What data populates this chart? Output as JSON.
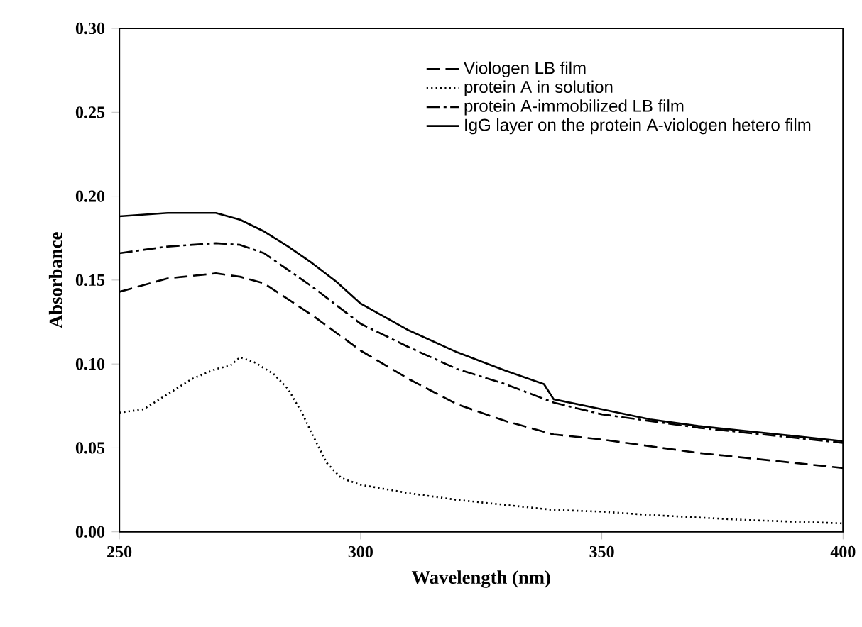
{
  "chart_data": {
    "type": "line",
    "xlabel": "Wavelength (nm)",
    "ylabel": "Absorbance",
    "xlim": [
      250,
      400
    ],
    "ylim": [
      0,
      0.3
    ],
    "xticks": [
      250,
      300,
      350,
      400
    ],
    "yticks": [
      {
        "value": 0,
        "label": "0.00"
      },
      {
        "value": 0.05,
        "label": "0.05"
      },
      {
        "value": 0.1,
        "label": "0.10"
      },
      {
        "value": 0.15,
        "label": "0.15"
      },
      {
        "value": 0.2,
        "label": "0.20"
      },
      {
        "value": 0.25,
        "label": "0.25"
      },
      {
        "value": 0.3,
        "label": "0.30"
      }
    ],
    "legend": "top right",
    "grid": false,
    "marker": "none",
    "series": [
      {
        "name": "Viologen LB film",
        "color": "#000000",
        "line_style": "dashed",
        "x": [
          250,
          260,
          270,
          275,
          280,
          290,
          300,
          310,
          320,
          330,
          340,
          350,
          360,
          370,
          380,
          390,
          400
        ],
        "values": [
          0.143,
          0.151,
          0.154,
          0.152,
          0.148,
          0.129,
          0.108,
          0.091,
          0.076,
          0.066,
          0.058,
          0.055,
          0.051,
          0.047,
          0.044,
          0.041,
          0.038
        ]
      },
      {
        "name": "protein A in solution",
        "color": "#000000",
        "line_style": "dotted",
        "x": [
          250,
          255,
          260,
          265,
          270,
          273,
          275,
          278,
          282,
          285,
          288,
          290,
          293,
          296,
          300,
          310,
          320,
          330,
          340,
          350,
          360,
          380,
          400
        ],
        "values": [
          0.071,
          0.073,
          0.082,
          0.091,
          0.097,
          0.099,
          0.104,
          0.101,
          0.094,
          0.085,
          0.07,
          0.058,
          0.041,
          0.032,
          0.028,
          0.023,
          0.019,
          0.016,
          0.013,
          0.012,
          0.01,
          0.007,
          0.005
        ]
      },
      {
        "name": "protein A-immobilized LB film",
        "color": "#000000",
        "line_style": "dashdot",
        "x": [
          250,
          260,
          270,
          275,
          280,
          290,
          300,
          310,
          320,
          330,
          340,
          350,
          360,
          370,
          380,
          390,
          400
        ],
        "values": [
          0.166,
          0.17,
          0.172,
          0.171,
          0.166,
          0.146,
          0.124,
          0.11,
          0.097,
          0.088,
          0.077,
          0.07,
          0.066,
          0.062,
          0.059,
          0.056,
          0.053
        ]
      },
      {
        "name": "IgG layer on the protein A-viologen hetero film",
        "color": "#000000",
        "line_style": "solid",
        "x": [
          250,
          260,
          270,
          275,
          280,
          285,
          290,
          295,
          300,
          310,
          320,
          330,
          338,
          340,
          350,
          360,
          370,
          380,
          390,
          400
        ],
        "values": [
          0.188,
          0.19,
          0.19,
          0.186,
          0.179,
          0.17,
          0.16,
          0.149,
          0.136,
          0.12,
          0.107,
          0.096,
          0.088,
          0.079,
          0.073,
          0.067,
          0.063,
          0.06,
          0.057,
          0.054
        ]
      }
    ]
  }
}
